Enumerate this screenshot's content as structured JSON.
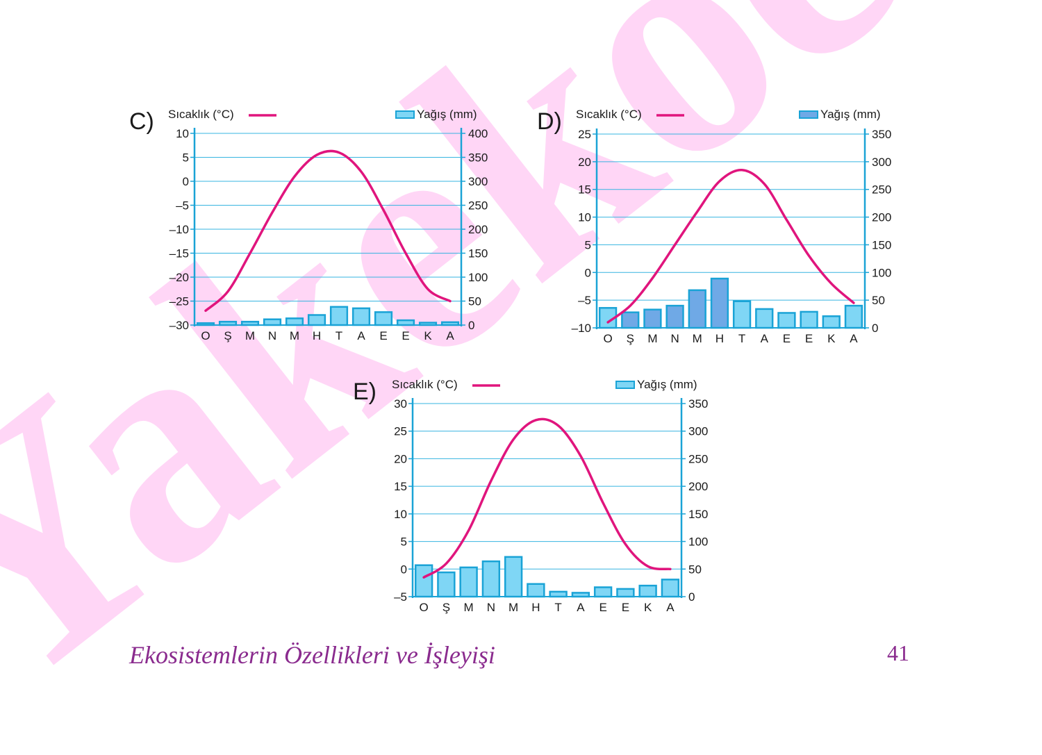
{
  "watermark": {
    "text": "Yakekoe",
    "color": "#ffd6f6"
  },
  "footer": {
    "title": "Ekosistemlerin Özellikleri ve İşleyişi",
    "page_number": "41"
  },
  "colors": {
    "temperature_line": "#e0157d",
    "bar_fill_light": "#7fd6f5",
    "bar_fill_dark": "#6fa9e6",
    "bar_stroke": "#1aa3d6",
    "axis": "#1aa3d6",
    "grid": "#36b4e0",
    "text": "#1a1a1a"
  },
  "chart_data": [
    {
      "id": "C",
      "panel_label": "C)",
      "type": "bar+line",
      "temperature_label": "Sıcaklık (°C)",
      "precipitation_label": "Yağış (mm)",
      "categories": [
        "O",
        "Ş",
        "M",
        "N",
        "M",
        "H",
        "T",
        "A",
        "E",
        "E",
        "K",
        "A"
      ],
      "y_left": {
        "range": [
          -30,
          10
        ],
        "ticks": [
          10,
          5,
          0,
          -5,
          -10,
          -15,
          -20,
          -25,
          -30
        ],
        "tick_labels": [
          "10",
          "5",
          "0",
          "–5",
          "–10",
          "–15",
          "–20",
          "–25",
          "–30"
        ]
      },
      "y_right": {
        "range": [
          0,
          400
        ],
        "ticks": [
          400,
          350,
          300,
          250,
          200,
          150,
          100,
          50,
          0
        ],
        "tick_labels": [
          "400",
          "350",
          "300",
          "250",
          "200",
          "150",
          "100",
          "50",
          "0"
        ]
      },
      "grid": true,
      "bar_style": "light",
      "temperature": [
        -27,
        -23,
        -15,
        -6.5,
        1,
        5.5,
        6,
        2,
        -6,
        -15,
        -22.5,
        -25
      ],
      "precipitation": [
        4,
        7,
        7,
        12,
        14,
        21,
        38,
        35,
        27,
        10,
        5,
        6
      ]
    },
    {
      "id": "D",
      "panel_label": "D)",
      "type": "bar+line",
      "temperature_label": "Sıcaklık (°C)",
      "precipitation_label": "Yağış (mm)",
      "categories": [
        "O",
        "Ş",
        "M",
        "N",
        "M",
        "H",
        "T",
        "A",
        "E",
        "E",
        "K",
        "A"
      ],
      "y_left": {
        "range": [
          -10,
          25
        ],
        "ticks": [
          25,
          20,
          15,
          10,
          5,
          0,
          -5,
          -10
        ],
        "tick_labels": [
          "25",
          "20",
          "15",
          "10",
          "5",
          "0",
          "–5",
          "–10"
        ]
      },
      "y_right": {
        "range": [
          0,
          350
        ],
        "ticks": [
          350,
          300,
          250,
          200,
          150,
          100,
          50,
          0
        ],
        "tick_labels": [
          "350",
          "300",
          "250",
          "200",
          "150",
          "100",
          "50",
          "0"
        ]
      },
      "grid": true,
      "bar_style": "mixed",
      "temperature": [
        -9,
        -6,
        -1,
        5,
        11,
        16.5,
        18.5,
        16,
        9.5,
        3,
        -2,
        -5.5
      ],
      "precipitation": [
        36,
        28,
        33,
        40,
        68,
        89,
        48,
        34,
        27,
        29,
        21,
        40
      ]
    },
    {
      "id": "E",
      "panel_label": "E)",
      "type": "bar+line",
      "temperature_label": "Sıcaklık (°C)",
      "precipitation_label": "Yağış (mm)",
      "categories": [
        "O",
        "Ş",
        "M",
        "N",
        "M",
        "H",
        "T",
        "A",
        "E",
        "E",
        "K",
        "A"
      ],
      "y_left": {
        "range": [
          -5,
          30
        ],
        "ticks": [
          30,
          25,
          20,
          15,
          10,
          5,
          0,
          -5
        ],
        "tick_labels": [
          "30",
          "25",
          "20",
          "15",
          "10",
          "5",
          "0",
          "–5"
        ]
      },
      "y_right": {
        "range": [
          0,
          350
        ],
        "ticks": [
          350,
          300,
          250,
          200,
          150,
          100,
          50,
          0
        ],
        "tick_labels": [
          "350",
          "300",
          "250",
          "200",
          "150",
          "100",
          "50",
          "0"
        ]
      },
      "grid": true,
      "bar_style": "light",
      "temperature": [
        -1.5,
        1,
        7,
        16,
        23.5,
        27,
        26,
        20.5,
        12,
        4.5,
        0.5,
        0
      ],
      "precipitation": [
        57,
        44,
        53,
        64,
        72,
        23,
        9,
        7,
        17,
        14,
        20,
        31
      ]
    }
  ]
}
